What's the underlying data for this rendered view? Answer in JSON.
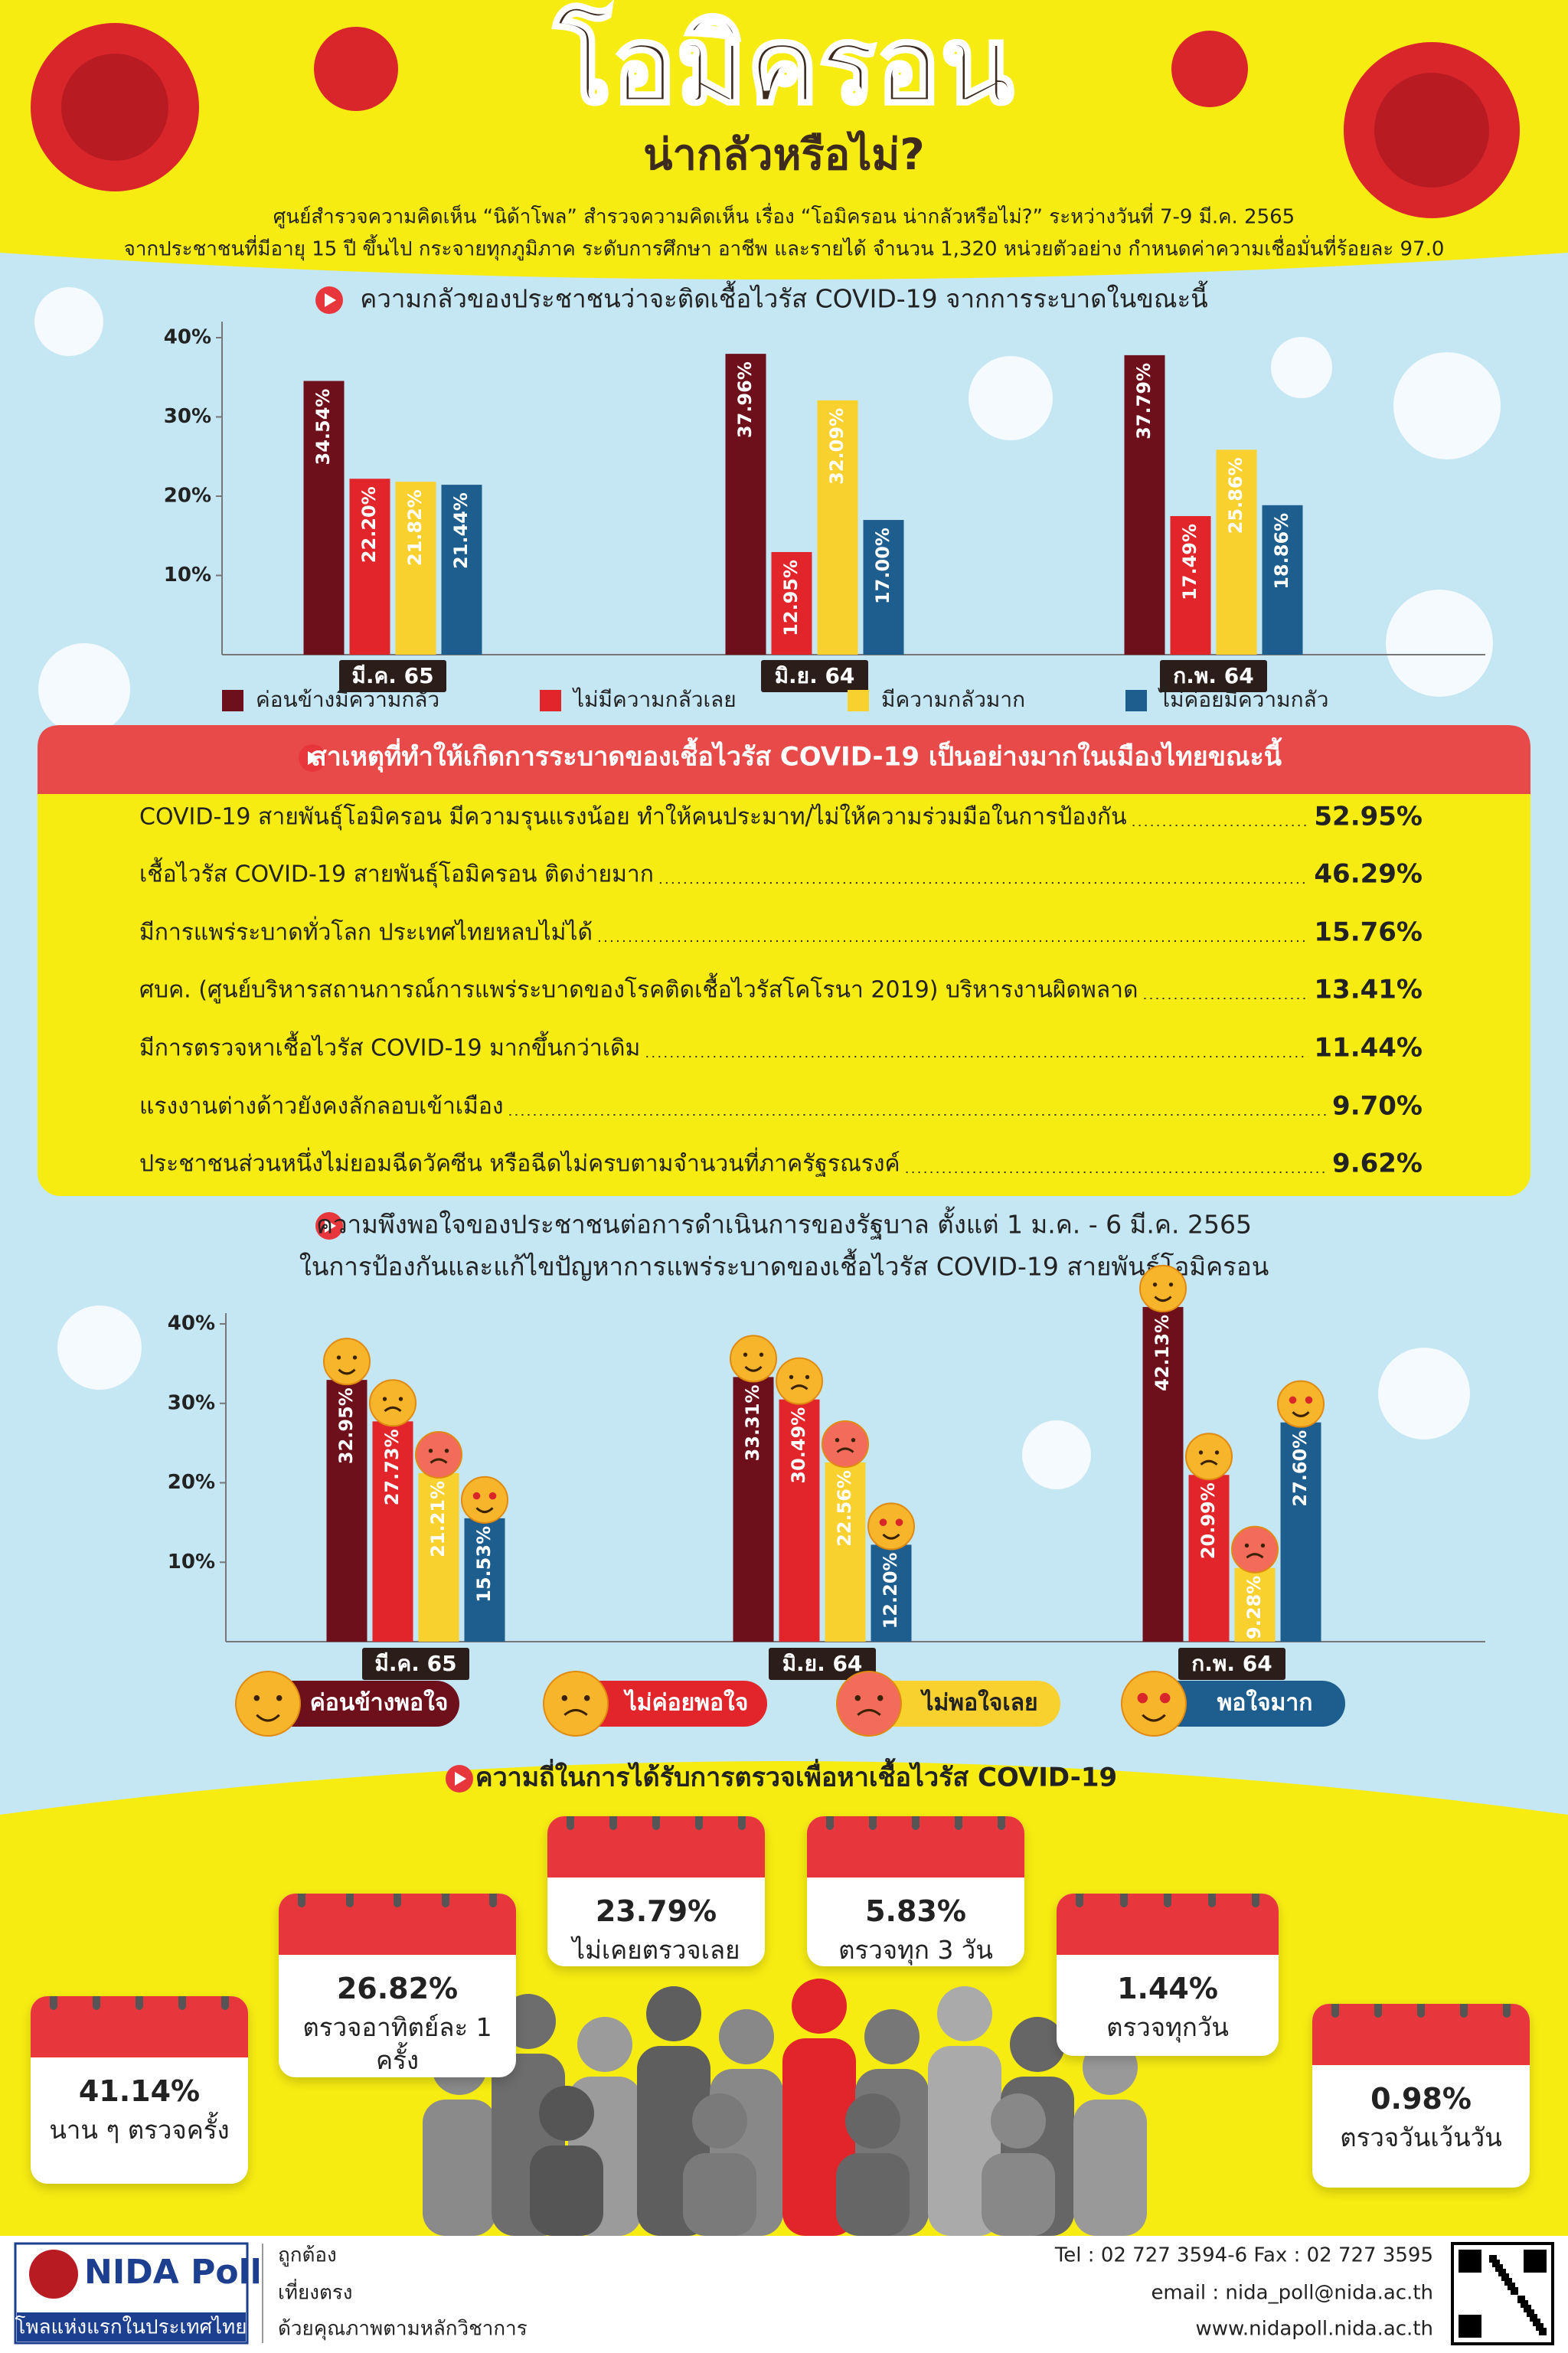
{
  "header": {
    "title": "โอมิครอน",
    "subtitle": "น่ากลัวหรือไม่?",
    "description": [
      "ศูนย์สำรวจความคิดเห็น “นิด้าโพล” สำรวจความคิดเห็น เรื่อง “โอมิครอน น่ากลัวหรือไม่?” ระหว่างวันที่ 7-9 มี.ค. 2565",
      "จากประชาชนที่มีอายุ 15 ปี ขึ้นไป กระจายทุกภูมิภาค ระดับการศึกษา อาชีพ และรายได้ จำนวน 1,320 หน่วยตัวอย่าง กำหนดค่าความเชื่อมั่นที่ร้อยละ 97.0"
    ]
  },
  "chart_data": [
    {
      "type": "bar",
      "title": "ความกลัวของประชาชนว่าจะติดเชื้อไวรัส COVID-19 จากการระบาดในขณะนี้",
      "categories": [
        "มี.ค. 65",
        "มิ.ย. 64",
        "ก.พ. 64"
      ],
      "series": [
        {
          "name": "ค่อนข้างมีความกลัว",
          "color": "#6e0f1c",
          "values": [
            34.54,
            37.96,
            37.79
          ],
          "value_labels": [
            "34.54%",
            "37.96%",
            "37.79%"
          ]
        },
        {
          "name": "ไม่มีความกลัวเลย",
          "color": "#e2252b",
          "values": [
            22.2,
            12.95,
            17.49
          ],
          "value_labels": [
            "22.20%",
            "12.95%",
            "17.49%"
          ]
        },
        {
          "name": "มีความกลัวมาก",
          "color": "#f8d12f",
          "values": [
            21.82,
            32.09,
            25.86
          ],
          "value_labels": [
            "21.82%",
            "32.09%",
            "25.86%"
          ]
        },
        {
          "name": "ไม่ค่อยมีความกลัว",
          "color": "#1d5e8e",
          "values": [
            21.44,
            17.0,
            18.86
          ],
          "value_labels": [
            "21.44%",
            "17.00%",
            "18.86%"
          ]
        }
      ],
      "ylim": [
        0,
        40
      ],
      "yticks": [
        {
          "value": 10,
          "label": "10%"
        },
        {
          "value": 20,
          "label": "20%"
        },
        {
          "value": 30,
          "label": "30%"
        },
        {
          "value": 40,
          "label": "40%"
        }
      ]
    },
    {
      "type": "bar",
      "title": "ความพึงพอใจของประชาชนต่อการดำเนินการของรัฐบาล ตั้งแต่ 1 ม.ค. - 6 มี.ค. 2565",
      "subtitle": "ในการป้องกันและแก้ไขปัญหาการแพร่ระบาดของเชื้อไวรัส COVID-19 สายพันธุ์โอมิครอน",
      "categories": [
        "มี.ค. 65",
        "มิ.ย. 64",
        "ก.พ. 64"
      ],
      "series": [
        {
          "name": "ค่อนข้างพอใจ",
          "color": "#6e0f1c",
          "values": [
            32.95,
            33.31,
            42.13
          ],
          "value_labels": [
            "32.95%",
            "33.31%",
            "42.13%"
          ]
        },
        {
          "name": "ไม่ค่อยพอใจ",
          "color": "#e2252b",
          "values": [
            27.73,
            30.49,
            20.99
          ],
          "value_labels": [
            "27.73%",
            "30.49%",
            "20.99%"
          ]
        },
        {
          "name": "ไม่พอใจเลย",
          "color": "#f8d12f",
          "values": [
            21.21,
            22.56,
            9.28
          ],
          "value_labels": [
            "21.21%",
            "22.56%",
            "9.28%"
          ]
        },
        {
          "name": "พอใจมาก",
          "color": "#1d5e8e",
          "values": [
            15.53,
            12.2,
            27.6
          ],
          "value_labels": [
            "15.53%",
            "12.20%",
            "27.60%"
          ]
        }
      ],
      "ylim": [
        0,
        40
      ],
      "yticks": [
        {
          "value": 10,
          "label": "10%"
        },
        {
          "value": 20,
          "label": "20%"
        },
        {
          "value": 30,
          "label": "30%"
        },
        {
          "value": 40,
          "label": "40%"
        }
      ]
    }
  ],
  "causes": {
    "title": "สาเหตุที่ทำให้เกิดการระบาดของเชื้อไวรัส COVID-19 เป็นอย่างมากในเมืองไทยขณะนี้",
    "items": [
      {
        "text": "COVID-19 สายพันธุ์โอมิครอน มีความรุนแรงน้อย ทำให้คนประมาท/ไม่ให้ความร่วมมือในการป้องกัน",
        "value": "52.95%"
      },
      {
        "text": "เชื้อไวรัส COVID-19 สายพันธุ์โอมิครอน ติดง่ายมาก",
        "value": "46.29%"
      },
      {
        "text": "มีการแพร่ระบาดทั่วโลก ประเทศไทยหลบไม่ได้",
        "value": "15.76%"
      },
      {
        "text": "ศบค. (ศูนย์บริหารสถานการณ์การแพร่ระบาดของโรคติดเชื้อไวรัสโคโรนา 2019) บริหารงานผิดพลาด",
        "value": "13.41%"
      },
      {
        "text": "มีการตรวจหาเชื้อไวรัส COVID-19 มากขึ้นกว่าเดิม",
        "value": "11.44%"
      },
      {
        "text": "แรงงานต่างด้าวยังคงลักลอบเข้าเมือง",
        "value": "9.70%"
      },
      {
        "text": "ประชาชนส่วนหนึ่งไม่ยอมฉีดวัคซีน หรือฉีดไม่ครบตามจำนวนที่ภาครัฐรณรงค์",
        "value": "9.62%"
      }
    ]
  },
  "frequency": {
    "title": "ความถี่ในการได้รับการตรวจเพื่อหาเชื้อไวรัส COVID-19",
    "items": [
      {
        "value": "41.14%",
        "label": "นาน ๆ ตรวจครั้ง"
      },
      {
        "value": "26.82%",
        "label": "ตรวจอาทิตย์ละ 1 ครั้ง"
      },
      {
        "value": "23.79%",
        "label": "ไม่เคยตรวจเลย"
      },
      {
        "value": "5.83%",
        "label": "ตรวจทุก 3 วัน"
      },
      {
        "value": "1.44%",
        "label": "ตรวจทุกวัน"
      },
      {
        "value": "0.98%",
        "label": "ตรวจวันเว้นวัน"
      }
    ]
  },
  "footer": {
    "logo": "NIDA Poll",
    "tagline": "โพลแห่งแรกในประเทศไทย",
    "slogan": [
      "ถูกต้อง",
      "เที่ยงตรง",
      "ด้วยคุณภาพตามหลักวิชาการ"
    ],
    "contact": [
      "Tel : 02 727 3594-6 Fax : 02 727 3595",
      "email : nida_poll@nida.ac.th",
      "www.nidapoll.nida.ac.th"
    ]
  }
}
